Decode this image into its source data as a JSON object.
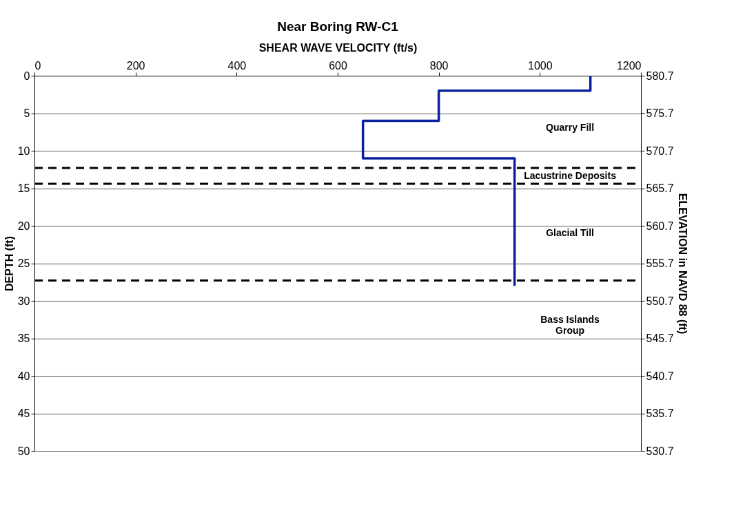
{
  "chart_data": {
    "type": "line",
    "title": "Near Boring RW-C1",
    "xlabel": "SHEAR WAVE VELOCITY (ft/s)",
    "ylabel": "DEPTH (ft)",
    "y2label": "ELEVATION in NAVD 88 (ft)",
    "series": [
      {
        "color": "#0a1f9e",
        "x": [
          1100,
          1100,
          800,
          800,
          650,
          650,
          950,
          950
        ],
        "values": [
          0,
          2,
          2,
          6,
          6,
          11,
          11,
          28
        ]
      }
    ],
    "xlim": [
      0,
      1200
    ],
    "xticks": [
      0,
      200,
      400,
      600,
      800,
      1000,
      1200
    ],
    "ylim": [
      50,
      0
    ],
    "yticks": [
      0,
      5,
      10,
      15,
      20,
      25,
      30,
      35,
      40,
      45,
      50
    ],
    "y2lim": [
      530.7,
      580.7
    ],
    "y2ticks": [
      530.7,
      535.7,
      540.7,
      545.7,
      550.7,
      555.7,
      560.7,
      565.7,
      570.7,
      575.7,
      580.7
    ],
    "ref_lines": [
      {
        "axis": "y",
        "value": 12.3,
        "color": "#000000",
        "line_style": "dashed"
      },
      {
        "axis": "y",
        "value": 14.4,
        "color": "#000000",
        "line_style": "dashed"
      },
      {
        "axis": "y",
        "value": 27.3,
        "color": "#000000",
        "line_style": "dashed"
      }
    ],
    "annotations": [
      "Quarry Fill",
      "Lacustrine Deposits",
      "Glacial Till",
      "Bass Islands\nGroup"
    ],
    "grid": "y",
    "marker": "none",
    "line_style": "solid"
  }
}
